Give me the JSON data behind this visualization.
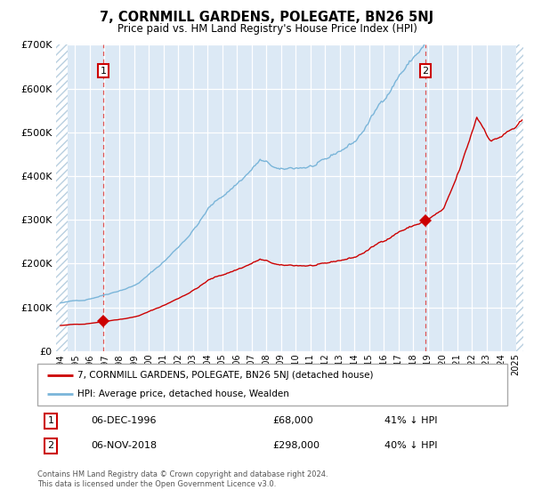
{
  "title": "7, CORNMILL GARDENS, POLEGATE, BN26 5NJ",
  "subtitle": "Price paid vs. HM Land Registry's House Price Index (HPI)",
  "ylim": [
    0,
    700000
  ],
  "yticks": [
    0,
    100000,
    200000,
    300000,
    400000,
    500000,
    600000,
    700000
  ],
  "ytick_labels": [
    "£0",
    "£100K",
    "£200K",
    "£300K",
    "£400K",
    "£500K",
    "£600K",
    "£700K"
  ],
  "bg_color": "#dce9f5",
  "grid_color": "#ffffff",
  "hpi_color": "#7ab5d9",
  "price_color": "#cc0000",
  "marker_color": "#cc0000",
  "dashed_line_color": "#dd5555",
  "annotation_box_color": "#cc0000",
  "sale1_date": 1996.92,
  "sale1_price": 68000,
  "sale1_label": "1",
  "sale1_date_str": "06-DEC-1996",
  "sale1_price_str": "£68,000",
  "sale1_hpi_str": "41% ↓ HPI",
  "sale2_date": 2018.84,
  "sale2_price": 298000,
  "sale2_label": "2",
  "sale2_date_str": "06-NOV-2018",
  "sale2_price_str": "£298,000",
  "sale2_hpi_str": "40% ↓ HPI",
  "legend_label1": "7, CORNMILL GARDENS, POLEGATE, BN26 5NJ (detached house)",
  "legend_label2": "HPI: Average price, detached house, Wealden",
  "footer": "Contains HM Land Registry data © Crown copyright and database right 2024.\nThis data is licensed under the Open Government Licence v3.0.",
  "xmin": 1993.7,
  "xmax": 2025.5,
  "hatch_left_end": 1994.5,
  "hatch_right_start": 2025.0
}
